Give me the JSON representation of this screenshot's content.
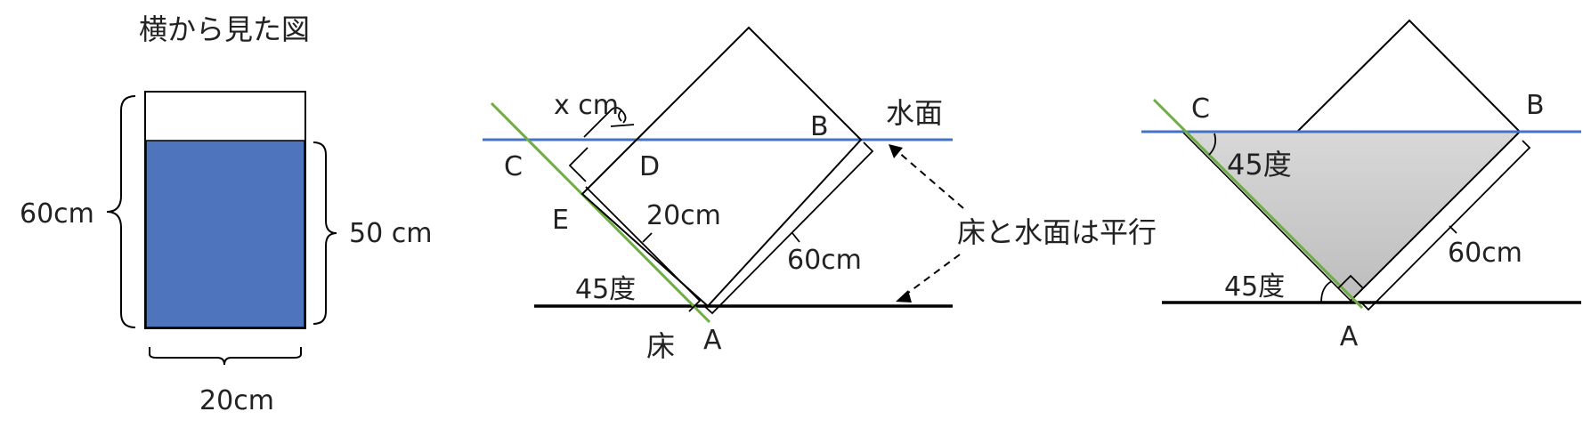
{
  "colors": {
    "water": "#4f74be",
    "water_line": "#4472c4",
    "floor_line_green": "#70ad47",
    "shade": "#cccccc",
    "stroke": "#000000"
  },
  "fig1": {
    "title": "横から見た図",
    "height_label": "60cm",
    "water_label": "50 cm",
    "width_label": "20cm"
  },
  "fig2": {
    "x_label": "x cm",
    "water_surface": "水面",
    "C": "C",
    "D": "D",
    "B": "B",
    "E": "E",
    "A": "A",
    "width_label": "20cm",
    "length_label": "60cm",
    "angle_label": "45度",
    "floor_label": "床",
    "parallel_note": "床と水面は平行"
  },
  "fig3": {
    "C": "C",
    "B": "B",
    "A": "A",
    "angle_top": "45度",
    "angle_bottom": "45度",
    "length_label": "60cm"
  }
}
